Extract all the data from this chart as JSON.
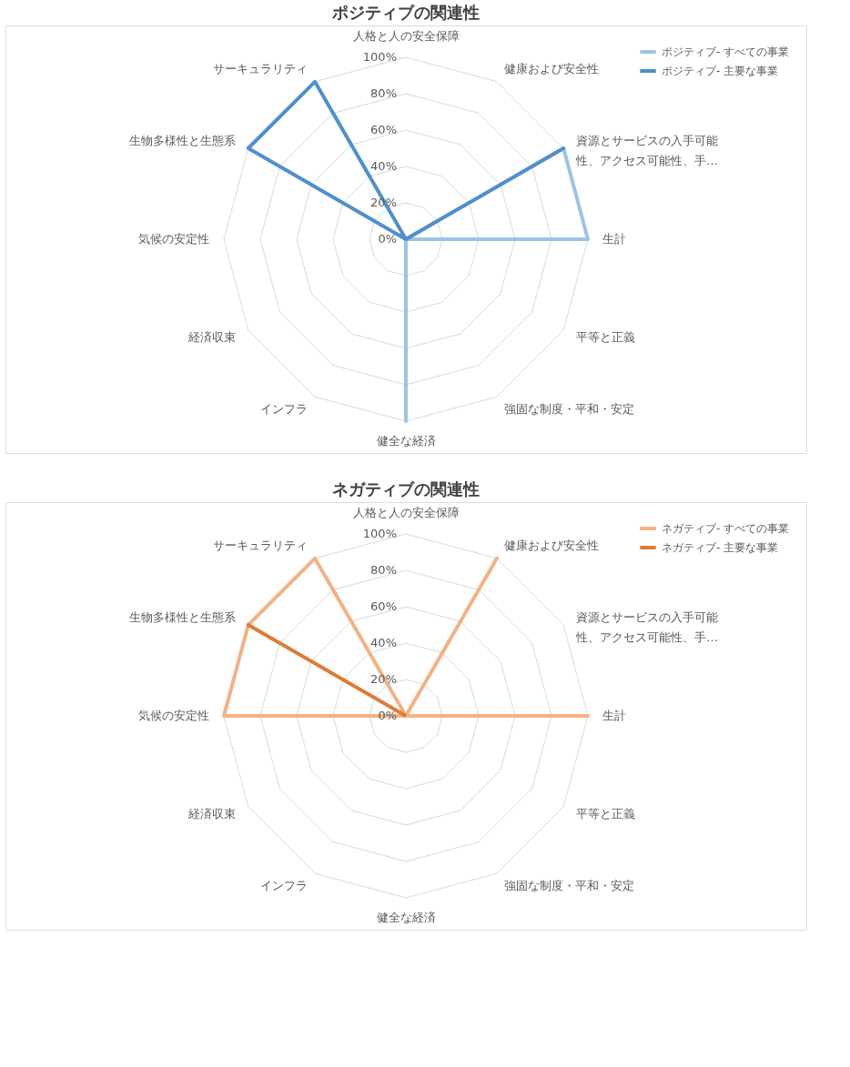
{
  "chart_data": [
    {
      "type": "radar",
      "title": "ポジティブの関連性",
      "categories": [
        "人格と人の安全保障",
        "健康および安全性",
        "資源とサービスの入手可能性、アクセス可能性、手…",
        "生計",
        "平等と正義",
        "強固な制度・平和・安定",
        "健全な経済",
        "インフラ",
        "経済収束",
        "気候の安定性",
        "生物多様性と生態系",
        "サーキュラリティ"
      ],
      "series": [
        {
          "name": "ポジティブ- すべての事業",
          "color": "#9dc3e6",
          "values": [
            0,
            0,
            100,
            100,
            0,
            0,
            100,
            0,
            0,
            0,
            null,
            null
          ]
        },
        {
          "name": "ポジティブ- 主要な事業",
          "color": "#4f8fcf",
          "values": [
            0,
            0,
            100,
            0,
            0,
            0,
            0,
            0,
            0,
            0,
            100,
            100
          ]
        }
      ],
      "ylim": [
        0,
        100
      ],
      "yticks": [
        {
          "value": 0,
          "label": "0%"
        },
        {
          "value": 20,
          "label": "20%"
        },
        {
          "value": 40,
          "label": "40%"
        },
        {
          "value": 60,
          "label": "60%"
        },
        {
          "value": 80,
          "label": "80%"
        },
        {
          "value": 100,
          "label": "100%"
        }
      ],
      "grid": true,
      "legend": "top right"
    },
    {
      "type": "radar",
      "title": "ネガティブの関連性",
      "categories": [
        "人格と人の安全保障",
        "健康および安全性",
        "資源とサービスの入手可能性、アクセス可能性、手…",
        "生計",
        "平等と正義",
        "強固な制度・平和・安定",
        "健全な経済",
        "インフラ",
        "経済収束",
        "気候の安定性",
        "生物多様性と生態系",
        "サーキュラリティ"
      ],
      "series": [
        {
          "name": "ネガティブ- すべての事業",
          "color": "#f4b183",
          "values": [
            0,
            100,
            0,
            100,
            0,
            0,
            0,
            0,
            0,
            100,
            100,
            100
          ]
        },
        {
          "name": "ネガティブ- 主要な事業",
          "color": "#e07b39",
          "values": [
            0,
            0,
            0,
            0,
            0,
            0,
            0,
            0,
            0,
            0,
            100,
            0
          ]
        }
      ],
      "ylim": [
        0,
        100
      ],
      "yticks": [
        {
          "value": 0,
          "label": "0%"
        },
        {
          "value": 20,
          "label": "20%"
        },
        {
          "value": 40,
          "label": "40%"
        },
        {
          "value": 60,
          "label": "60%"
        },
        {
          "value": 80,
          "label": "80%"
        },
        {
          "value": 100,
          "label": "100%"
        }
      ],
      "grid": true,
      "legend": "top right"
    }
  ]
}
